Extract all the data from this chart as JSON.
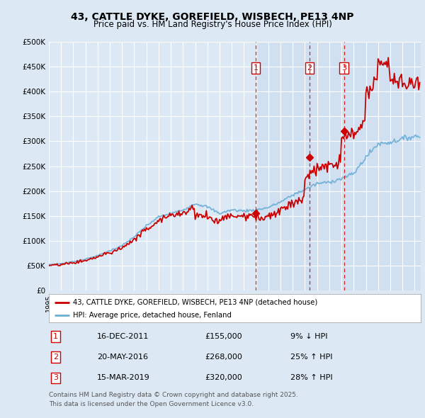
{
  "title_line1": "43, CATTLE DYKE, GOREFIELD, WISBECH, PE13 4NP",
  "title_line2": "Price paid vs. HM Land Registry's House Price Index (HPI)",
  "background_color": "#dce9f5",
  "plot_bg_color": "#dce9f5",
  "ylim": [
    0,
    500000
  ],
  "yticks": [
    0,
    50000,
    100000,
    150000,
    200000,
    250000,
    300000,
    350000,
    400000,
    450000,
    500000
  ],
  "ytick_labels": [
    "£0",
    "£50K",
    "£100K",
    "£150K",
    "£200K",
    "£250K",
    "£300K",
    "£350K",
    "£400K",
    "£450K",
    "£500K"
  ],
  "xmin": 1995.0,
  "xmax": 2025.5,
  "sale_dates_num": [
    2011.96,
    2016.38,
    2019.21
  ],
  "sale_prices": [
    155000,
    268000,
    320000
  ],
  "sale_labels": [
    "1",
    "2",
    "3"
  ],
  "sale_dates_str": [
    "16-DEC-2011",
    "20-MAY-2016",
    "15-MAR-2019"
  ],
  "sale_prices_str": [
    "£155,000",
    "£268,000",
    "£320,000"
  ],
  "sale_notes": [
    "9% ↓ HPI",
    "25% ↑ HPI",
    "28% ↑ HPI"
  ],
  "red_line_color": "#cc0000",
  "blue_line_color": "#6baed6",
  "marker_box_color": "#cc0000",
  "dashed_line_color": "#cc0000",
  "legend_label_red": "43, CATTLE DYKE, GOREFIELD, WISBECH, PE13 4NP (detached house)",
  "legend_label_blue": "HPI: Average price, detached house, Fenland",
  "footer_text": "Contains HM Land Registry data © Crown copyright and database right 2025.\nThis data is licensed under the Open Government Licence v3.0.",
  "grid_color": "#ffffff"
}
